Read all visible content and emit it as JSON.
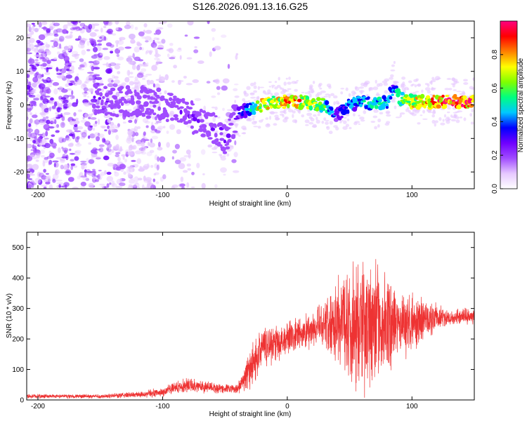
{
  "title": "S126.2026.091.13.16.G25",
  "chart_data": [
    {
      "type": "heatmap",
      "name": "spectrogram",
      "xlabel": "Height of straight line (km)",
      "ylabel": "Frequency (Hz)",
      "xlim": [
        -209,
        150
      ],
      "ylim": [
        -25,
        25
      ],
      "xticks": [
        -200,
        -100,
        0,
        100
      ],
      "yticks": [
        -20,
        -10,
        0,
        10,
        20
      ],
      "colorbar": {
        "label": "Normalized spectral amplitude",
        "range": [
          0,
          1
        ],
        "ticks": [
          "0.0",
          "0.2",
          "0.4",
          "0.6",
          "0.8"
        ],
        "tick_values": [
          0,
          0.2,
          0.4,
          0.6,
          0.8
        ],
        "colors": [
          "#ffffff",
          "#e6c8ff",
          "#a14cff",
          "#6f00ff",
          "#0000ff",
          "#00c8ff",
          "#00ff80",
          "#80ff00",
          "#ffff00",
          "#ff8000",
          "#ff0000",
          "#ff0080"
        ]
      },
      "ridge": {
        "x": [
          -155,
          -140,
          -120,
          -100,
          -80,
          -65,
          -55,
          -50,
          -40,
          -30,
          -20,
          -10,
          0,
          10,
          20,
          30,
          40,
          50,
          60,
          70,
          80,
          86,
          90,
          100,
          110,
          120,
          130,
          140,
          150
        ],
        "freq": [
          2,
          1,
          1,
          0,
          -3,
          -6,
          -8,
          -11,
          -3,
          -1,
          0,
          1,
          1,
          1,
          0,
          0,
          -3,
          0,
          1,
          0,
          1,
          6,
          2,
          1,
          1,
          1,
          1,
          1,
          1
        ],
        "amplitude": [
          0.22,
          0.22,
          0.2,
          0.22,
          0.25,
          0.22,
          0.3,
          0.25,
          0.3,
          0.45,
          0.8,
          0.7,
          0.85,
          0.8,
          0.7,
          0.6,
          0.35,
          0.45,
          0.5,
          0.55,
          0.5,
          0.45,
          0.6,
          0.75,
          0.82,
          0.88,
          0.9,
          0.9,
          0.9
        ]
      }
    },
    {
      "type": "line",
      "name": "snr",
      "xlabel": "Height of straight line (km)",
      "ylabel": "SNR (10 * v/v)",
      "xlim": [
        -209,
        150
      ],
      "ylim": [
        0,
        550
      ],
      "xticks": [
        -200,
        -100,
        0,
        100
      ],
      "yticks": [
        0,
        100,
        200,
        300,
        400,
        500
      ],
      "color": "#ee3333",
      "envelope": {
        "x": [
          -209,
          -150,
          -120,
          -100,
          -90,
          -80,
          -60,
          -40,
          -30,
          -20,
          0,
          20,
          30,
          40,
          50,
          60,
          70,
          80,
          90,
          100,
          110,
          120,
          130,
          150
        ],
        "mean": [
          12,
          12,
          18,
          25,
          40,
          50,
          40,
          35,
          100,
          175,
          200,
          230,
          250,
          265,
          255,
          245,
          245,
          250,
          250,
          250,
          260,
          270,
          270,
          275
        ],
        "amplitude": [
          8,
          8,
          12,
          18,
          22,
          28,
          22,
          15,
          80,
          80,
          70,
          70,
          100,
          170,
          230,
          260,
          230,
          180,
          140,
          110,
          80,
          50,
          35,
          30
        ]
      }
    }
  ]
}
